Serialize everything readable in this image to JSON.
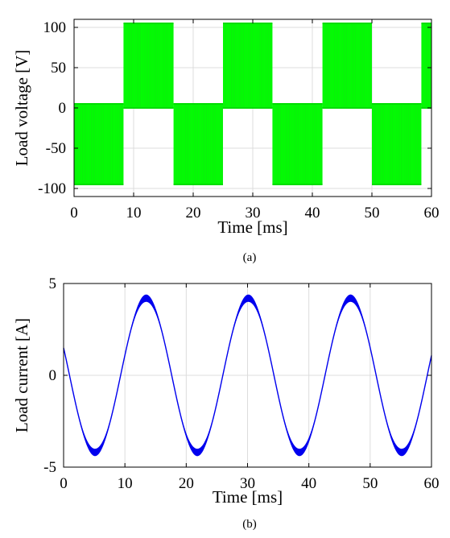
{
  "figure": {
    "caption_a": "(a)",
    "caption_b": "(b)"
  },
  "colors": {
    "voltage": "#00ff00",
    "current": "#0000ee",
    "grid": "#dcdcdc",
    "axis": "#000000"
  },
  "chart_data": [
    {
      "type": "line",
      "id": "a",
      "title": "",
      "xlabel": "Time [ms]",
      "ylabel": "Load voltage [V]",
      "xlim": [
        0,
        60
      ],
      "ylim": [
        -110,
        110
      ],
      "xticks": [
        0,
        10,
        20,
        30,
        40,
        50,
        60
      ],
      "yticks": [
        100,
        50,
        0,
        -50,
        -100
      ],
      "grid": true,
      "description": "PWM-switched square-like voltage, period ~16.67 ms, switching between about +100/0 V and 0/-100 V bands",
      "period_ms": 16.67,
      "series": [
        {
          "segments": [
            {
              "t_start": 0.0,
              "t_end": 8.3,
              "high": 5,
              "low": -95
            },
            {
              "t_start": 8.3,
              "t_end": 16.7,
              "high": 105,
              "low": 0
            },
            {
              "t_start": 16.7,
              "t_end": 25.0,
              "high": 5,
              "low": -95
            },
            {
              "t_start": 25.0,
              "t_end": 33.3,
              "high": 105,
              "low": 0
            },
            {
              "t_start": 33.3,
              "t_end": 41.7,
              "high": 5,
              "low": -95
            },
            {
              "t_start": 41.7,
              "t_end": 50.0,
              "high": 105,
              "low": 0
            },
            {
              "t_start": 50.0,
              "t_end": 58.3,
              "high": 5,
              "low": -95
            },
            {
              "t_start": 58.3,
              "t_end": 60.0,
              "high": 105,
              "low": 0
            }
          ]
        }
      ]
    },
    {
      "type": "line",
      "id": "b",
      "title": "",
      "xlabel": "Time [ms]",
      "ylabel": "Load current [A]",
      "xlim": [
        0,
        60
      ],
      "ylim": [
        -5,
        5
      ],
      "xticks": [
        0,
        10,
        20,
        30,
        40,
        50,
        60
      ],
      "yticks": [
        5,
        0,
        -5
      ],
      "grid": true,
      "series": [
        {
          "amplitude": 4.2,
          "period_ms": 16.67,
          "offset_ms": 9.3,
          "x": [
            0,
            1,
            2,
            3,
            4,
            5,
            6,
            7,
            8,
            9,
            10,
            11,
            12,
            13,
            14,
            15,
            16,
            17,
            18,
            19,
            20,
            21,
            22,
            23,
            24,
            25,
            26,
            27,
            28,
            29,
            30,
            31,
            32,
            33,
            34,
            35,
            36,
            37,
            38,
            39,
            40,
            41,
            42,
            43,
            44,
            45,
            46,
            47,
            48,
            49,
            50,
            51,
            52,
            53,
            54,
            55,
            56,
            57,
            58,
            59,
            60
          ],
          "y": [
            1.3,
            -0.2,
            -1.7,
            -3.0,
            -3.9,
            -4.2,
            -3.9,
            -3.0,
            -1.8,
            -0.5,
            0.9,
            2.3,
            3.5,
            4.1,
            4.1,
            3.4,
            2.2,
            0.8,
            -0.6,
            -2.0,
            -3.2,
            -4.0,
            -4.2,
            -3.8,
            -2.9,
            -1.6,
            -0.2,
            1.3,
            2.7,
            3.8,
            4.2,
            4.0,
            3.1,
            1.9,
            0.4,
            -1.0,
            -2.4,
            -3.5,
            -4.1,
            -4.1,
            -3.4,
            -2.3,
            -0.9,
            0.6,
            2.0,
            3.2,
            4.0,
            4.2,
            3.8,
            2.8,
            1.5,
            0.1,
            -1.4,
            -2.7,
            -3.7,
            -4.2,
            -4.0,
            -3.2,
            -2.0,
            -0.5,
            1.0
          ]
        }
      ]
    }
  ]
}
